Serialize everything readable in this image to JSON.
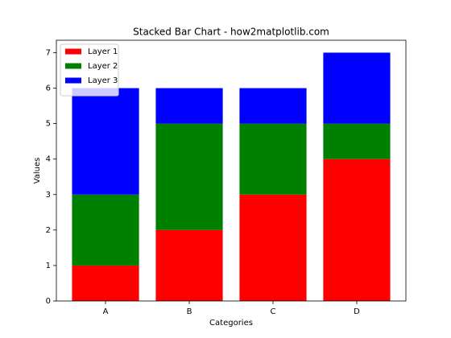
{
  "chart_data": {
    "type": "stacked_bar",
    "title": "Stacked Bar Chart - how2matplotlib.com",
    "x_label": "Categories",
    "y_label": "Values",
    "categories": [
      "A",
      "B",
      "C",
      "D"
    ],
    "series": [
      {
        "name": "Layer 1",
        "color": "#ff0000",
        "values": [
          1,
          2,
          3,
          4
        ]
      },
      {
        "name": "Layer 2",
        "color": "#008000",
        "values": [
          2,
          3,
          2,
          1
        ]
      },
      {
        "name": "Layer 3",
        "color": "#0000ff",
        "values": [
          3,
          1,
          1,
          2
        ]
      }
    ],
    "ylim": [
      0,
      7.35
    ],
    "yticks": [
      0,
      1,
      2,
      3,
      4,
      5,
      6,
      7
    ],
    "legend": "upper left"
  }
}
